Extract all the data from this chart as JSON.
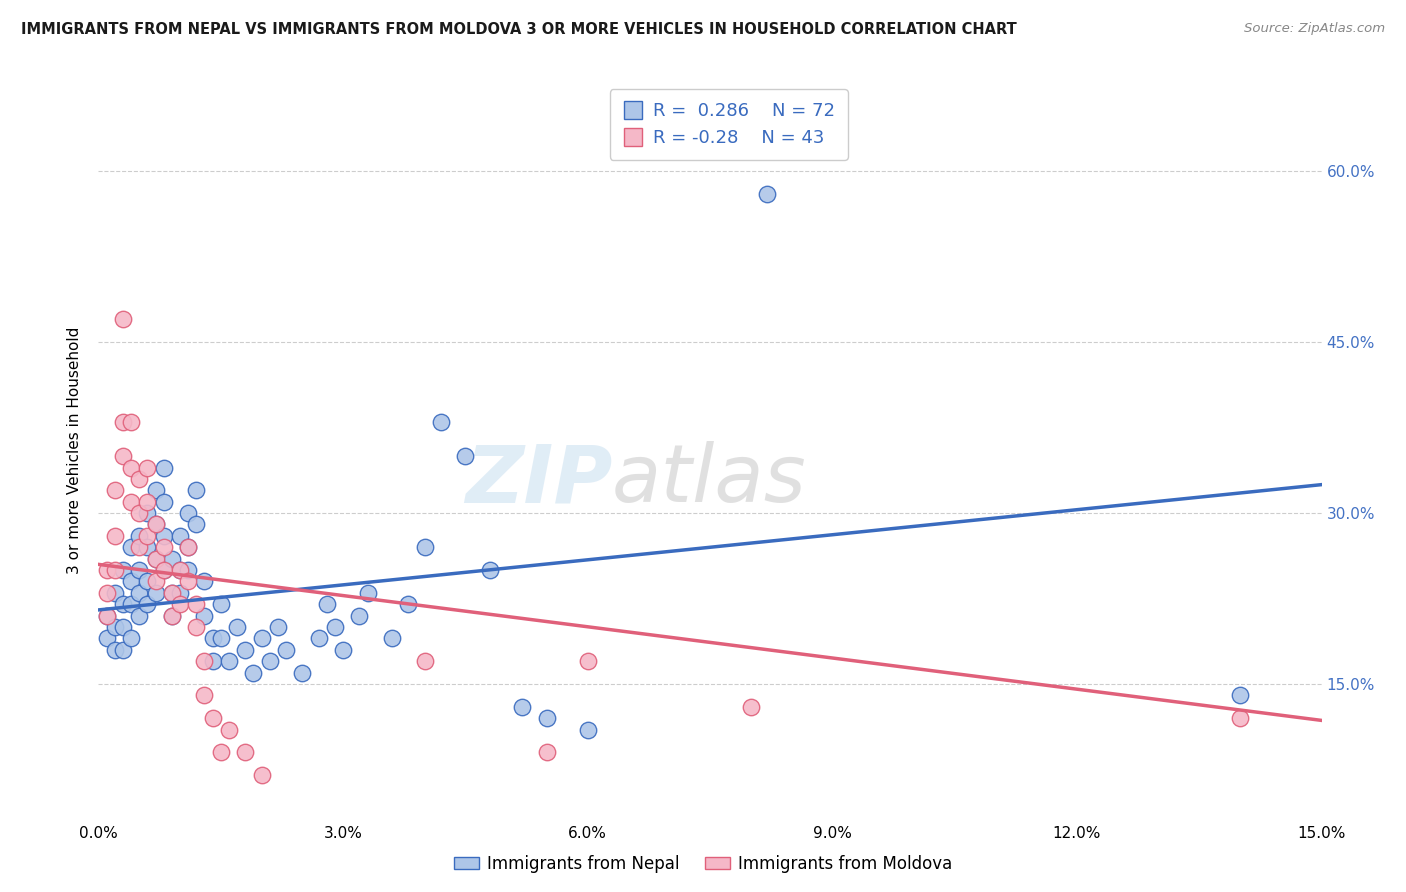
{
  "title": "IMMIGRANTS FROM NEPAL VS IMMIGRANTS FROM MOLDOVA 3 OR MORE VEHICLES IN HOUSEHOLD CORRELATION CHART",
  "source": "Source: ZipAtlas.com",
  "ylabel": "3 or more Vehicles in Household",
  "yaxis_labels": [
    "15.0%",
    "30.0%",
    "45.0%",
    "60.0%"
  ],
  "xmin": 0.0,
  "xmax": 0.15,
  "ymin": 0.03,
  "ymax": 0.68,
  "nepal_color": "#aec6e8",
  "nepal_line_color": "#3a6bbf",
  "moldova_color": "#f5b8c8",
  "moldova_line_color": "#e0607a",
  "nepal_R": 0.286,
  "nepal_N": 72,
  "moldova_R": -0.28,
  "moldova_N": 43,
  "nepal_trend_x": [
    0.0,
    0.15
  ],
  "nepal_trend_y": [
    0.215,
    0.325
  ],
  "moldova_trend_x": [
    0.0,
    0.15
  ],
  "moldova_trend_y": [
    0.255,
    0.118
  ],
  "nepal_points": [
    [
      0.001,
      0.21
    ],
    [
      0.001,
      0.19
    ],
    [
      0.002,
      0.23
    ],
    [
      0.002,
      0.2
    ],
    [
      0.002,
      0.18
    ],
    [
      0.003,
      0.25
    ],
    [
      0.003,
      0.22
    ],
    [
      0.003,
      0.2
    ],
    [
      0.003,
      0.18
    ],
    [
      0.004,
      0.27
    ],
    [
      0.004,
      0.24
    ],
    [
      0.004,
      0.22
    ],
    [
      0.004,
      0.19
    ],
    [
      0.005,
      0.28
    ],
    [
      0.005,
      0.25
    ],
    [
      0.005,
      0.23
    ],
    [
      0.005,
      0.21
    ],
    [
      0.006,
      0.3
    ],
    [
      0.006,
      0.27
    ],
    [
      0.006,
      0.24
    ],
    [
      0.006,
      0.22
    ],
    [
      0.007,
      0.32
    ],
    [
      0.007,
      0.29
    ],
    [
      0.007,
      0.26
    ],
    [
      0.007,
      0.23
    ],
    [
      0.008,
      0.34
    ],
    [
      0.008,
      0.31
    ],
    [
      0.008,
      0.28
    ],
    [
      0.008,
      0.25
    ],
    [
      0.009,
      0.26
    ],
    [
      0.009,
      0.23
    ],
    [
      0.009,
      0.21
    ],
    [
      0.01,
      0.28
    ],
    [
      0.01,
      0.25
    ],
    [
      0.01,
      0.23
    ],
    [
      0.011,
      0.3
    ],
    [
      0.011,
      0.27
    ],
    [
      0.011,
      0.25
    ],
    [
      0.012,
      0.32
    ],
    [
      0.012,
      0.29
    ],
    [
      0.013,
      0.24
    ],
    [
      0.013,
      0.21
    ],
    [
      0.014,
      0.19
    ],
    [
      0.014,
      0.17
    ],
    [
      0.015,
      0.22
    ],
    [
      0.015,
      0.19
    ],
    [
      0.016,
      0.17
    ],
    [
      0.017,
      0.2
    ],
    [
      0.018,
      0.18
    ],
    [
      0.019,
      0.16
    ],
    [
      0.02,
      0.19
    ],
    [
      0.021,
      0.17
    ],
    [
      0.022,
      0.2
    ],
    [
      0.023,
      0.18
    ],
    [
      0.025,
      0.16
    ],
    [
      0.027,
      0.19
    ],
    [
      0.028,
      0.22
    ],
    [
      0.029,
      0.2
    ],
    [
      0.03,
      0.18
    ],
    [
      0.032,
      0.21
    ],
    [
      0.033,
      0.23
    ],
    [
      0.036,
      0.19
    ],
    [
      0.038,
      0.22
    ],
    [
      0.04,
      0.27
    ],
    [
      0.042,
      0.38
    ],
    [
      0.045,
      0.35
    ],
    [
      0.048,
      0.25
    ],
    [
      0.052,
      0.13
    ],
    [
      0.055,
      0.12
    ],
    [
      0.06,
      0.11
    ],
    [
      0.14,
      0.14
    ],
    [
      0.082,
      0.58
    ]
  ],
  "moldova_points": [
    [
      0.001,
      0.25
    ],
    [
      0.001,
      0.23
    ],
    [
      0.001,
      0.21
    ],
    [
      0.002,
      0.32
    ],
    [
      0.002,
      0.28
    ],
    [
      0.002,
      0.25
    ],
    [
      0.003,
      0.47
    ],
    [
      0.003,
      0.38
    ],
    [
      0.003,
      0.35
    ],
    [
      0.004,
      0.38
    ],
    [
      0.004,
      0.34
    ],
    [
      0.004,
      0.31
    ],
    [
      0.005,
      0.33
    ],
    [
      0.005,
      0.3
    ],
    [
      0.005,
      0.27
    ],
    [
      0.006,
      0.34
    ],
    [
      0.006,
      0.31
    ],
    [
      0.006,
      0.28
    ],
    [
      0.007,
      0.29
    ],
    [
      0.007,
      0.26
    ],
    [
      0.007,
      0.24
    ],
    [
      0.008,
      0.27
    ],
    [
      0.008,
      0.25
    ],
    [
      0.009,
      0.23
    ],
    [
      0.009,
      0.21
    ],
    [
      0.01,
      0.25
    ],
    [
      0.01,
      0.22
    ],
    [
      0.011,
      0.27
    ],
    [
      0.011,
      0.24
    ],
    [
      0.012,
      0.22
    ],
    [
      0.012,
      0.2
    ],
    [
      0.013,
      0.17
    ],
    [
      0.013,
      0.14
    ],
    [
      0.014,
      0.12
    ],
    [
      0.015,
      0.09
    ],
    [
      0.016,
      0.11
    ],
    [
      0.018,
      0.09
    ],
    [
      0.02,
      0.07
    ],
    [
      0.04,
      0.17
    ],
    [
      0.06,
      0.17
    ],
    [
      0.055,
      0.09
    ],
    [
      0.08,
      0.13
    ],
    [
      0.14,
      0.12
    ]
  ]
}
